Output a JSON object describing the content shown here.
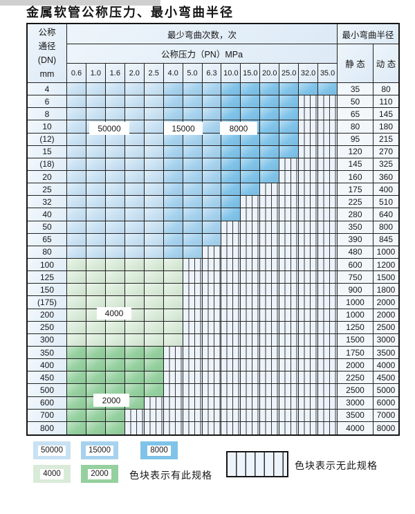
{
  "title": "金属软管公称压力、最小弯曲半径",
  "table": {
    "dn_header": [
      "公称",
      "通径",
      "(DN)",
      "mm"
    ],
    "bend_header": "最少弯曲次数，次",
    "pressure_header": "公称压力（PN）MPa",
    "pressure_columns": [
      "0.6",
      "1.0",
      "1.6",
      "2.0",
      "2.5",
      "4.0",
      "5.0",
      "6.3",
      "10.0",
      "15.0",
      "20.0",
      "25.0",
      "32.0",
      "35.0"
    ],
    "radius_header": "最小弯曲半径",
    "static_header": "静 态",
    "dynamic_header": "动 态",
    "rows": [
      {
        "dn": "4",
        "max_col": 14,
        "static": "35",
        "dynamic": "80"
      },
      {
        "dn": "6",
        "max_col": 12,
        "static": "50",
        "dynamic": "110"
      },
      {
        "dn": "8",
        "max_col": 12,
        "static": "65",
        "dynamic": "145"
      },
      {
        "dn": "10",
        "max_col": 12,
        "static": "80",
        "dynamic": "180"
      },
      {
        "dn": "(12)",
        "max_col": 12,
        "static": "95",
        "dynamic": "215"
      },
      {
        "dn": "15",
        "max_col": 12,
        "static": "120",
        "dynamic": "270"
      },
      {
        "dn": "(18)",
        "max_col": 11,
        "static": "145",
        "dynamic": "325"
      },
      {
        "dn": "20",
        "max_col": 11,
        "static": "160",
        "dynamic": "360"
      },
      {
        "dn": "25",
        "max_col": 10,
        "static": "175",
        "dynamic": "400"
      },
      {
        "dn": "32",
        "max_col": 9,
        "static": "225",
        "dynamic": "510"
      },
      {
        "dn": "40",
        "max_col": 9,
        "static": "280",
        "dynamic": "640"
      },
      {
        "dn": "50",
        "max_col": 8,
        "static": "350",
        "dynamic": "800"
      },
      {
        "dn": "65",
        "max_col": 8,
        "static": "390",
        "dynamic": "845"
      },
      {
        "dn": "80",
        "max_col": 7,
        "static": "480",
        "dynamic": "1000"
      },
      {
        "dn": "100",
        "max_col": 6,
        "static": "600",
        "dynamic": "1200"
      },
      {
        "dn": "125",
        "max_col": 6,
        "static": "750",
        "dynamic": "1500"
      },
      {
        "dn": "150",
        "max_col": 6,
        "static": "900",
        "dynamic": "1800"
      },
      {
        "dn": "(175)",
        "max_col": 6,
        "static": "1000",
        "dynamic": "2000"
      },
      {
        "dn": "200",
        "max_col": 6,
        "static": "1000",
        "dynamic": "2000"
      },
      {
        "dn": "250",
        "max_col": 6,
        "static": "1250",
        "dynamic": "2500"
      },
      {
        "dn": "300",
        "max_col": 6,
        "static": "1500",
        "dynamic": "3000"
      },
      {
        "dn": "350",
        "max_col": 5,
        "static": "1750",
        "dynamic": "3500"
      },
      {
        "dn": "400",
        "max_col": 5,
        "static": "2000",
        "dynamic": "4000"
      },
      {
        "dn": "450",
        "max_col": 5,
        "static": "2250",
        "dynamic": "4500"
      },
      {
        "dn": "500",
        "max_col": 5,
        "static": "2500",
        "dynamic": "5000"
      },
      {
        "dn": "600",
        "max_col": 4,
        "static": "3000",
        "dynamic": "6000"
      },
      {
        "dn": "700",
        "max_col": 3,
        "static": "3500",
        "dynamic": "7000"
      },
      {
        "dn": "800",
        "max_col": 3,
        "static": "4000",
        "dynamic": "8000"
      }
    ],
    "blue_row_count": 14,
    "green4000_row_count": 7,
    "blue_zone_breaks": {
      "b1_last_col": 5,
      "b2_last_col": 8
    }
  },
  "overlay_tags": {
    "t50000": "50000",
    "t15000": "15000",
    "t8000": "8000",
    "t4000": "4000",
    "t2000": "2000"
  },
  "legend": {
    "swatches": [
      {
        "label": "50000",
        "color": "#c8e1f3"
      },
      {
        "label": "15000",
        "color": "#a6d2ee"
      },
      {
        "label": "8000",
        "color": "#80c3e9"
      },
      {
        "label": "4000",
        "color": "#d9ebd8"
      },
      {
        "label": "2000",
        "color": "#95d09f"
      }
    ],
    "has_spec_note": "色块表示有此规格",
    "no_spec_note": "色块表示无此规格"
  },
  "colors": {
    "blue_50000": "#c8e1f3",
    "blue_15000": "#a6d2ee",
    "blue_8000": "#80c3e9",
    "green_4000": "#d9ebd8",
    "green_2000": "#95d09f",
    "hatch_bg": "#edf3fa"
  }
}
